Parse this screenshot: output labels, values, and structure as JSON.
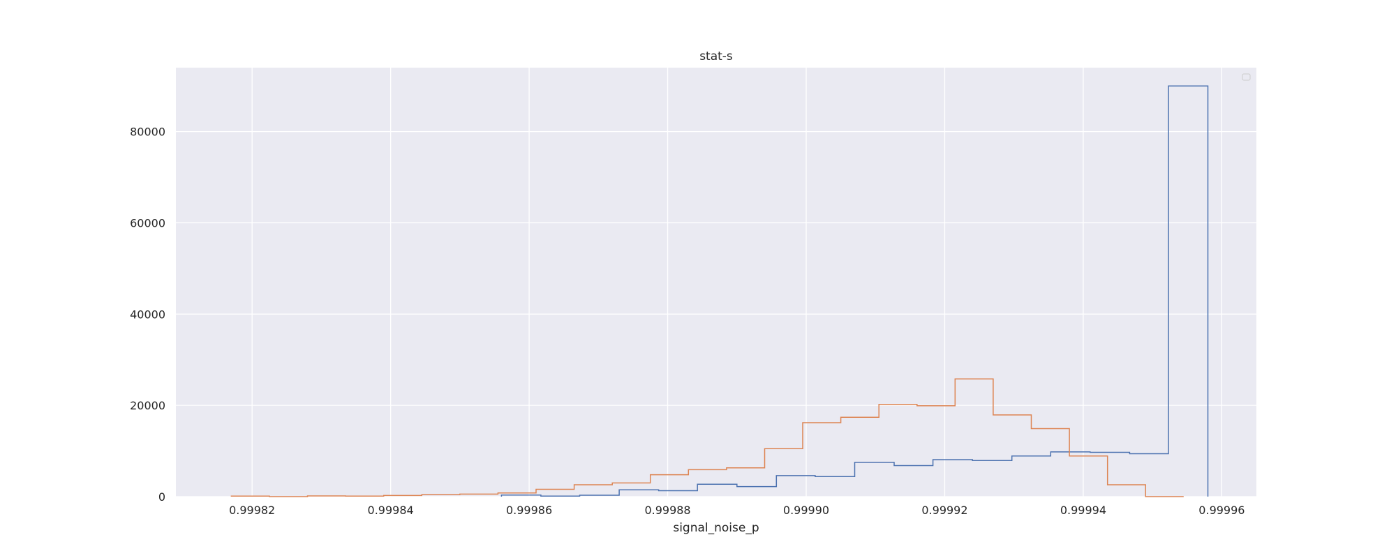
{
  "chart_data": {
    "type": "histogram-step",
    "title": "stat-s",
    "xlabel": "signal_noise_p",
    "ylabel": "",
    "xlim": [
      0.999809,
      0.999965
    ],
    "ylim": [
      0,
      94000
    ],
    "xticks": [
      "0.99982",
      "0.99984",
      "0.99986",
      "0.99988",
      "0.99990",
      "0.99992",
      "0.99994",
      "0.99996"
    ],
    "xtick_values": [
      0.99982,
      0.99984,
      0.99986,
      0.99988,
      0.9999,
      0.99992,
      0.99994,
      0.99996
    ],
    "yticks": [
      "0",
      "20000",
      "40000",
      "60000",
      "80000"
    ],
    "ytick_values": [
      0,
      20000,
      40000,
      60000,
      80000
    ],
    "grid": true,
    "legend": {
      "placement": "top-right",
      "entries": []
    },
    "colors": {
      "background": "#eaeaf2",
      "grid": "#ffffff",
      "series_1": "#4c72b0",
      "series_2": "#dd8452"
    },
    "series": [
      {
        "color": "#4c72b0",
        "bin_edges": [
          0.999856,
          0.9998617,
          0.9998673,
          0.999873,
          0.9998787,
          0.9998843,
          0.99989,
          0.9998957,
          0.9999013,
          0.999907,
          0.9999127,
          0.9999183,
          0.999924,
          0.9999297,
          0.9999353,
          0.999941,
          0.9999467,
          0.9999523,
          0.999958
        ],
        "counts": [
          350,
          100,
          300,
          1500,
          1300,
          2700,
          2200,
          4600,
          4400,
          7500,
          6800,
          8100,
          7900,
          8900,
          9800,
          9700,
          9400,
          90000
        ]
      },
      {
        "color": "#dd8452",
        "bin_edges": [
          0.999817,
          0.9998225,
          0.999828,
          0.9998335,
          0.999839,
          0.9998445,
          0.99985,
          0.9998555,
          0.999861,
          0.9998665,
          0.999872,
          0.9998775,
          0.999883,
          0.9998885,
          0.999894,
          0.9998995,
          0.999905,
          0.9999105,
          0.999916,
          0.9999215,
          0.999927,
          0.9999325,
          0.999938,
          0.9999435,
          0.999949,
          0.9999545
        ],
        "counts": [
          100,
          0,
          150,
          100,
          250,
          450,
          550,
          800,
          1600,
          2600,
          3000,
          4800,
          5900,
          6300,
          10500,
          16200,
          17400,
          20200,
          19900,
          25800,
          17900,
          14900,
          8900,
          2600,
          0
        ]
      }
    ]
  }
}
